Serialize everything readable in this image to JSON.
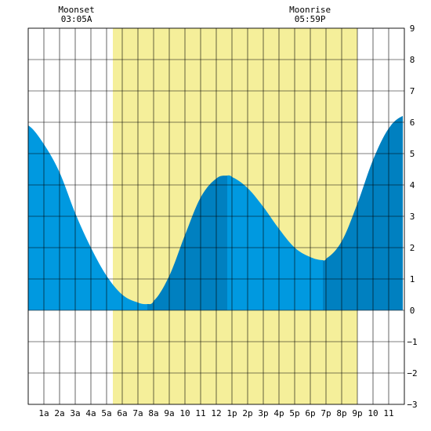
{
  "chart_data": {
    "type": "area",
    "title": "",
    "xlabel": "",
    "ylabel": "",
    "x_ticks": [
      "1a",
      "2a",
      "3a",
      "4a",
      "5a",
      "6a",
      "7a",
      "8a",
      "9a",
      "10",
      "11",
      "12",
      "1p",
      "2p",
      "3p",
      "4p",
      "5p",
      "6p",
      "7p",
      "8p",
      "9p",
      "10",
      "11"
    ],
    "y_ticks": [
      "9",
      "8",
      "7",
      "6",
      "5",
      "4",
      "3",
      "2",
      "1",
      "0",
      "−1",
      "−2",
      "−3"
    ],
    "xlim_hours": [
      0,
      24
    ],
    "ylim": [
      -3,
      9
    ],
    "grid": true,
    "moon_events": [
      {
        "label": "Moonset",
        "time": "03:05A",
        "hour": 3.08
      },
      {
        "label": "Moonrise",
        "time": "05:59P",
        "hour": 17.98
      }
    ],
    "daylight_hours": [
      5.4,
      21.0
    ],
    "tide_extremes": [
      {
        "type": "low",
        "hour": 7.6,
        "height": 0.2
      },
      {
        "type": "high",
        "hour": 12.7,
        "height": 4.3
      },
      {
        "type": "low",
        "hour": 18.8,
        "height": 1.6
      },
      {
        "type": "high",
        "hour": 23.9,
        "height": 6.2
      }
    ],
    "series": [
      {
        "x": [
          0,
          1,
          2,
          3,
          4,
          5,
          6,
          7,
          7.6,
          8,
          9,
          10,
          11,
          12,
          12.7,
          13,
          14,
          15,
          16,
          17,
          18,
          18.8,
          19,
          20,
          21,
          22,
          23,
          23.9,
          24
        ],
        "values": [
          5.9,
          5.3,
          4.4,
          3.1,
          2.0,
          1.1,
          0.5,
          0.25,
          0.2,
          0.3,
          1.1,
          2.4,
          3.6,
          4.2,
          4.3,
          4.25,
          3.9,
          3.3,
          2.6,
          2.0,
          1.7,
          1.6,
          1.65,
          2.2,
          3.4,
          4.8,
          5.8,
          6.2,
          6.2
        ],
        "color": "#0099e0"
      }
    ],
    "colors": {
      "tide": "#0099e0",
      "tide_alt": "#0080c0",
      "daylight": "#f5ef9a",
      "grid": "#000000"
    }
  }
}
